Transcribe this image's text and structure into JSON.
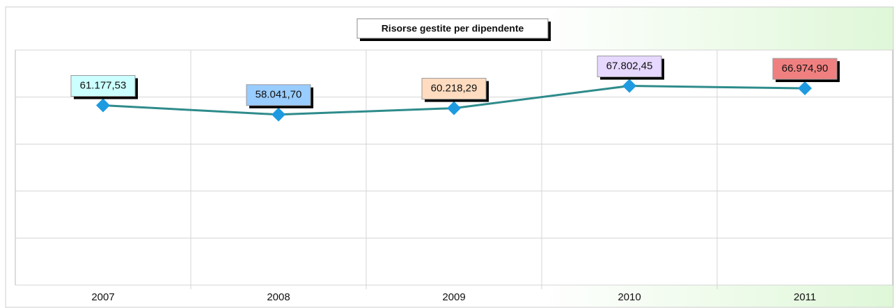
{
  "chart_data": {
    "type": "line",
    "title": "Risorse gestite per dipendente",
    "categories": [
      "2007",
      "2008",
      "2009",
      "2010",
      "2011"
    ],
    "series": [
      {
        "color": "#2e8b8b",
        "marker_color": "#1e9be0",
        "values": [
          61177.53,
          58041.7,
          60218.29,
          67802.45,
          66974.9
        ],
        "value_labels": [
          "61.177,53",
          "58.041,70",
          "60.218,29",
          "67.802,45",
          "66.974,90"
        ],
        "label_colors": [
          "#ccffff",
          "#99ccff",
          "#ffdcc0",
          "#e6d8ff",
          "#f08080"
        ]
      }
    ],
    "ylim": [
      0,
      80000
    ],
    "yticks": [
      0,
      16000,
      32000,
      48000,
      64000,
      80000
    ],
    "grid": true
  }
}
